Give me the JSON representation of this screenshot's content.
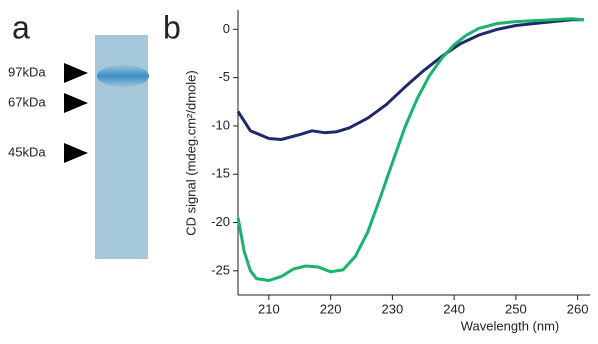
{
  "panel_a": {
    "label": "a",
    "markers": [
      "97kDa",
      "67kDa",
      "45kDa"
    ]
  },
  "chart_data": {
    "type": "line",
    "label": "b",
    "xlabel": "Wavelength (nm)",
    "ylabel": "CD signal (mdeg.cm²/dmole)",
    "xlim": [
      205,
      262
    ],
    "xticks": [
      210,
      220,
      230,
      240,
      250,
      260
    ],
    "ylim": [
      -27.5,
      2
    ],
    "yticks": [
      0,
      -5,
      -10,
      -15,
      -20,
      -25
    ],
    "series": [
      {
        "color": "#1f2a6e",
        "x": [
          205,
          207,
          210,
          212,
          215,
          217,
          219,
          221,
          223,
          226,
          229,
          232,
          235,
          238,
          241,
          244,
          247,
          250,
          253,
          256,
          259,
          261
        ],
        "values": [
          -8.5,
          -10.5,
          -11.3,
          -11.4,
          -10.9,
          -10.5,
          -10.7,
          -10.6,
          -10.2,
          -9.2,
          -7.8,
          -6.0,
          -4.3,
          -2.8,
          -1.5,
          -0.6,
          0,
          0.4,
          0.6,
          0.8,
          1.0,
          1.0
        ]
      },
      {
        "color": "#19b36b",
        "x": [
          205,
          206,
          207,
          208,
          210,
          212,
          214,
          216,
          218,
          220,
          222,
          224,
          226,
          228,
          230,
          232,
          234,
          236,
          238,
          240,
          242,
          244,
          247,
          250,
          253,
          256,
          259,
          261
        ],
        "values": [
          -19.5,
          -23,
          -25,
          -25.8,
          -26,
          -25.6,
          -24.8,
          -24.5,
          -24.6,
          -25.1,
          -24.9,
          -23.5,
          -21,
          -17.5,
          -13.8,
          -10.2,
          -7.2,
          -4.8,
          -3.0,
          -1.6,
          -0.6,
          0.1,
          0.6,
          0.8,
          0.9,
          1.0,
          1.1,
          1.0
        ]
      }
    ]
  }
}
